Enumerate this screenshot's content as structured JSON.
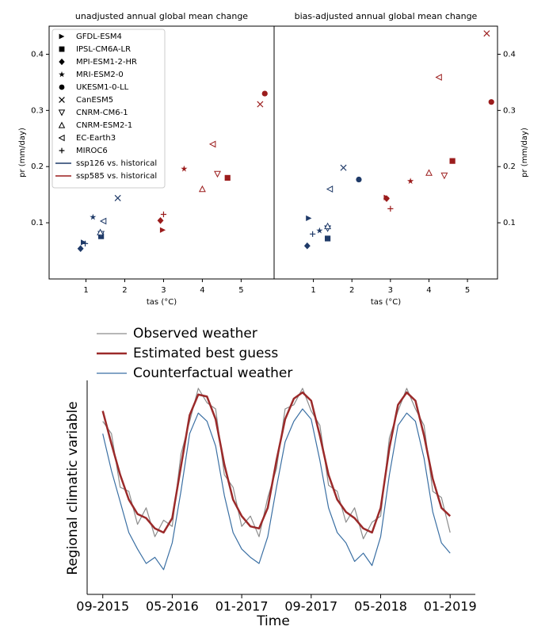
{
  "chart_data": [
    {
      "type": "scatter",
      "title": "unadjusted annual global mean change",
      "xlabel": "tas (°C)",
      "ylabel": "pr (mm/day)",
      "xlim": [
        0.05,
        5.85
      ],
      "ylim": [
        0,
        0.45
      ],
      "xticks": [
        1,
        2,
        3,
        4,
        5
      ],
      "yticks": [
        0.1,
        0.2,
        0.3,
        0.4
      ],
      "yaxis": "left",
      "legend": "upper left",
      "scenarios": [
        {
          "name": "ssp126 vs. historical",
          "color": "#1f3a68"
        },
        {
          "name": "ssp585 vs. historical",
          "color": "#9b1c1c"
        }
      ],
      "series": [
        {
          "name": "GFDL-ESM4",
          "marker": ">",
          "x": [
            0.94,
            2.98
          ],
          "values": [
            0.065,
            0.087
          ]
        },
        {
          "name": "IPSL-CM6A-LR",
          "marker": "s",
          "x": [
            1.39,
            4.65
          ],
          "values": [
            0.076,
            0.18
          ]
        },
        {
          "name": "MPI-ESM1-2-HR",
          "marker": "D",
          "x": [
            0.86,
            2.92
          ],
          "values": [
            0.054,
            0.104
          ]
        },
        {
          "name": "MRI-ESM2-0",
          "marker": "*",
          "x": [
            1.18,
            3.53
          ],
          "values": [
            0.11,
            0.196
          ]
        },
        {
          "name": "UKESM1-0-LL",
          "marker": "o",
          "x": [
            2.2,
            5.61
          ],
          "values": [
            0.17,
            0.33
          ]
        },
        {
          "name": "CanESM5",
          "marker": "x",
          "x": [
            1.82,
            5.49
          ],
          "values": [
            0.144,
            0.311
          ]
        },
        {
          "name": "CNRM-CM6-1",
          "marker": "v",
          "x": [
            1.39,
            4.39
          ],
          "values": [
            0.08,
            0.187
          ]
        },
        {
          "name": "CNRM-ESM2-1",
          "marker": "^",
          "x": [
            1.37,
            4.0
          ],
          "values": [
            0.083,
            0.16
          ]
        },
        {
          "name": "EC-Earth3",
          "marker": "<",
          "x": [
            1.45,
            4.27
          ],
          "values": [
            0.103,
            0.24
          ]
        },
        {
          "name": "MIROC6",
          "marker": "+",
          "x": [
            0.98,
            3.0
          ],
          "values": [
            0.063,
            0.115
          ]
        }
      ]
    },
    {
      "type": "scatter",
      "title": "bias-adjusted annual global mean change",
      "xlabel": "tas (°C)",
      "ylabel": "pr (mm/day)",
      "xlim": [
        -0.02,
        5.78
      ],
      "ylim": [
        0,
        0.45
      ],
      "xticks": [
        1,
        2,
        3,
        4,
        5
      ],
      "yticks": [
        0.1,
        0.2,
        0.3,
        0.4
      ],
      "yaxis": "right",
      "scenarios": [
        {
          "color": "#1f3a68"
        },
        {
          "color": "#9b1c1c"
        }
      ],
      "series": [
        {
          "marker": ">",
          "x": [
            0.88,
            2.9
          ],
          "values": [
            0.108,
            0.145
          ]
        },
        {
          "marker": "s",
          "x": [
            1.37,
            4.61
          ],
          "values": [
            0.072,
            0.21
          ]
        },
        {
          "marker": "D",
          "x": [
            0.84,
            2.9
          ],
          "values": [
            0.059,
            0.143
          ]
        },
        {
          "marker": "*",
          "x": [
            1.16,
            3.52
          ],
          "values": [
            0.086,
            0.174
          ]
        },
        {
          "marker": "o",
          "x": [
            2.18,
            5.62
          ],
          "values": [
            0.177,
            0.315
          ]
        },
        {
          "marker": "x",
          "x": [
            1.78,
            5.5
          ],
          "values": [
            0.198,
            0.437
          ]
        },
        {
          "marker": "v",
          "x": [
            1.37,
            4.4
          ],
          "values": [
            0.09,
            0.184
          ]
        },
        {
          "marker": "^",
          "x": [
            1.37,
            4.0
          ],
          "values": [
            0.094,
            0.189
          ]
        },
        {
          "marker": "<",
          "x": [
            1.43,
            4.26
          ],
          "values": [
            0.16,
            0.359
          ]
        },
        {
          "marker": "+",
          "x": [
            0.98,
            3.0
          ],
          "values": [
            0.08,
            0.125
          ]
        }
      ]
    },
    {
      "type": "line",
      "xlabel": "Time",
      "ylabel": "Regional climatic variable",
      "ylim": [
        0,
        100
      ],
      "legend": "upper left",
      "x": [
        "09-2015",
        "10-2015",
        "11-2015",
        "12-2015",
        "01-2016",
        "02-2016",
        "03-2016",
        "04-2016",
        "05-2016",
        "06-2016",
        "07-2016",
        "08-2016",
        "09-2016",
        "10-2016",
        "11-2016",
        "12-2016",
        "01-2017",
        "02-2017",
        "03-2017",
        "04-2017",
        "05-2017",
        "06-2017",
        "07-2017",
        "08-2017",
        "09-2017",
        "10-2017",
        "11-2017",
        "12-2017",
        "01-2018",
        "02-2018",
        "03-2018",
        "04-2018",
        "05-2018",
        "06-2018",
        "07-2018",
        "08-2018",
        "09-2018",
        "10-2018",
        "11-2018",
        "12-2018",
        "01-2019"
      ],
      "xticks": [
        "09-2015",
        "05-2016",
        "01-2017",
        "09-2017",
        "05-2018",
        "01-2019"
      ],
      "series": [
        {
          "name": "Observed weather",
          "color": "#8c8c8c",
          "width": 1.2,
          "values": [
            84,
            78,
            52,
            50,
            34,
            42,
            28,
            36,
            33,
            68,
            84,
            100,
            93,
            90,
            58,
            52,
            33,
            38,
            28,
            47,
            61,
            90,
            92,
            100,
            89,
            82,
            53,
            50,
            35,
            42,
            27,
            35,
            38,
            76,
            89,
            100,
            90,
            82,
            50,
            47,
            30
          ]
        },
        {
          "name": "Estimated best guess",
          "color": "#9b2a2a",
          "width": 2.5,
          "values": [
            89,
            73,
            58,
            46,
            39,
            37,
            32,
            30,
            37,
            62,
            87,
            97,
            96,
            85,
            63,
            46,
            38,
            33,
            32,
            42,
            65,
            85,
            95,
            98,
            94,
            77,
            58,
            46,
            40,
            37,
            32,
            30,
            42,
            71,
            92,
            98,
            94,
            77,
            56,
            42,
            38
          ]
        },
        {
          "name": "Counterfactual weather",
          "color": "#3a6fa3",
          "width": 1.2,
          "values": [
            78,
            60,
            45,
            30,
            22,
            15,
            18,
            12,
            25,
            50,
            78,
            88,
            84,
            72,
            48,
            30,
            22,
            18,
            15,
            28,
            52,
            74,
            84,
            90,
            85,
            65,
            42,
            30,
            25,
            16,
            20,
            14,
            28,
            58,
            82,
            88,
            84,
            66,
            40,
            25,
            20
          ]
        }
      ]
    }
  ]
}
